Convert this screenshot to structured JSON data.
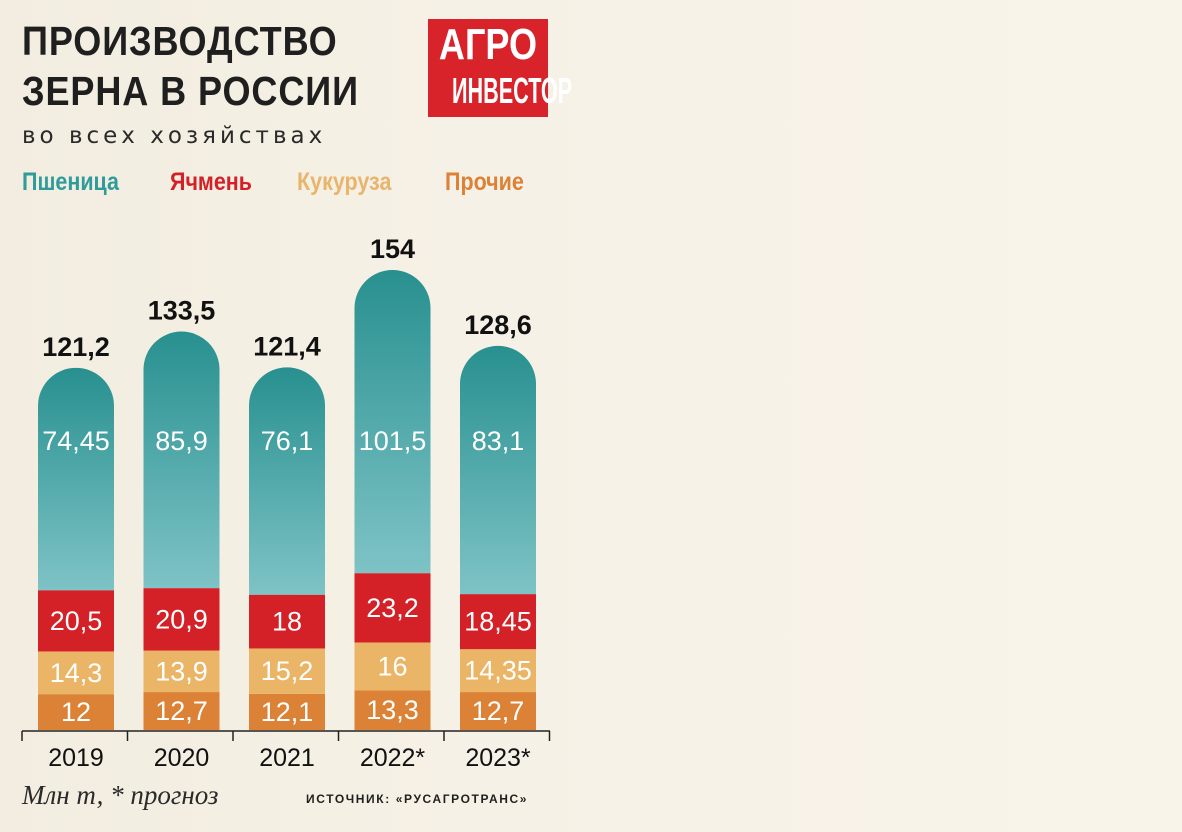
{
  "header": {
    "title_line1": "ПРОИЗВОДСТВО",
    "title_line2": "ЗЕРНА В РОССИИ",
    "subtitle": "во всех хозяйствах"
  },
  "logo": {
    "line1": "АГРО",
    "line2": "ИНВЕСТОР"
  },
  "legend": [
    {
      "label": "Пшеница",
      "color": "#2f9b9b"
    },
    {
      "label": "Ячмень",
      "color": "#d42027"
    },
    {
      "label": "Кукуруза",
      "color": "#e9b56c"
    },
    {
      "label": "Прочие",
      "color": "#dc8236"
    }
  ],
  "footnote": "Млн т, * прогноз",
  "source": "ИСТОЧНИК: «РУСАГРОТРАНС»",
  "chart_data": {
    "type": "bar",
    "stacked": true,
    "title": "ПРОИЗВОДСТВО ЗЕРНА В РОССИИ",
    "subtitle": "во всех хозяйствах",
    "categories": [
      "2019",
      "2020",
      "2021",
      "2022*",
      "2023*"
    ],
    "series": [
      {
        "name": "Прочие",
        "values": [
          12,
          12.7,
          12.1,
          13.3,
          12.7
        ],
        "labels": [
          "12",
          "12,7",
          "12,1",
          "13,3",
          "12,7"
        ],
        "color": "#dc8236",
        "label_color": "#ffffff"
      },
      {
        "name": "Кукуруза",
        "values": [
          14.3,
          13.9,
          15.2,
          16,
          14.35
        ],
        "labels": [
          "14,3",
          "13,9",
          "15,2",
          "16",
          "14,35"
        ],
        "color": "#eab567",
        "label_color": "#ffffff"
      },
      {
        "name": "Ячмень",
        "values": [
          20.5,
          20.9,
          18,
          23.2,
          18.45
        ],
        "labels": [
          "20,5",
          "20,9",
          "18",
          "23,2",
          "18,45"
        ],
        "color": "#d42027",
        "label_color": "#ffffff"
      },
      {
        "name": "Пшеница",
        "values": [
          74.45,
          85.9,
          76.1,
          101.5,
          83.1
        ],
        "labels": [
          "74,45",
          "85,9",
          "76,1",
          "101,5",
          "83,1"
        ],
        "color": "#2f9b9b",
        "label_color": "#ffffff"
      }
    ],
    "totals": [
      121.2,
      133.5,
      121.4,
      154,
      128.6
    ],
    "total_labels": [
      "121,2",
      "133,5",
      "121,4",
      "154",
      "128,6"
    ],
    "ylim": [
      0,
      154
    ],
    "unit": "Млн т",
    "grid": false,
    "legend_position": "top"
  }
}
